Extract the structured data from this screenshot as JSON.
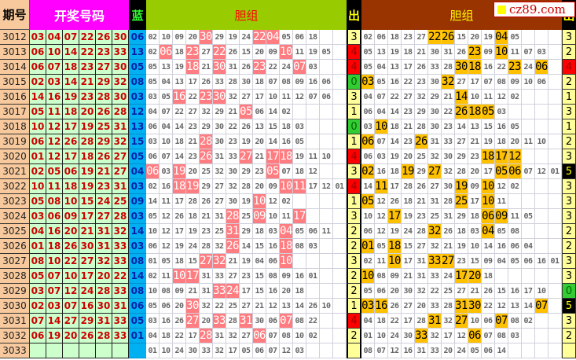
{
  "header": {
    "period": "期号",
    "draw": "开奖号码",
    "blue": "蓝",
    "dan_left": "胆组",
    "out_left": "出",
    "dan_right": "胆组",
    "out_right": "出"
  },
  "logo": "cz89.com",
  "colors": {
    "hit_left": "#ff7c80",
    "hit_right": "#ffc000",
    "out_4": "#ff0000",
    "out_0": "#33cc33",
    "out_5": "#000000",
    "draw_bg": "#ccffcc",
    "blue_bg": "#00b0f0"
  },
  "rows": [
    {
      "period": "3012",
      "draw": [
        "03",
        "04",
        "07",
        "22",
        "26",
        "30"
      ],
      "blue": "06",
      "left": [
        "02",
        "10",
        "09",
        "20",
        "30",
        "29",
        "19",
        "24",
        "22",
        "04",
        "05",
        "06",
        "18"
      ],
      "left_hits": [
        "30",
        "22",
        "04"
      ],
      "out_left": "3",
      "right": [
        "02",
        "06",
        "18",
        "23",
        "27",
        "22",
        "26",
        "15",
        "20",
        "19",
        "04",
        "05"
      ],
      "right_hits": [
        "22",
        "26",
        "04"
      ],
      "out_right": "3"
    },
    {
      "period": "3013",
      "draw": [
        "06",
        "10",
        "14",
        "22",
        "23",
        "33"
      ],
      "blue": "13",
      "left": [
        "02",
        "06",
        "18",
        "23",
        "27",
        "22",
        "26",
        "15",
        "20",
        "09",
        "10",
        "11",
        "19",
        "05"
      ],
      "left_hits": [
        "06",
        "23",
        "22",
        "10"
      ],
      "out_left": "4",
      "right": [
        "05",
        "13",
        "19",
        "18",
        "21",
        "30",
        "31",
        "26",
        "23",
        "09",
        "10",
        "11",
        "07",
        "03"
      ],
      "right_hits": [
        "23",
        "10"
      ],
      "out_right": "2"
    },
    {
      "period": "3014",
      "draw": [
        "06",
        "07",
        "18",
        "23",
        "27",
        "30"
      ],
      "blue": "05",
      "left": [
        "05",
        "13",
        "19",
        "18",
        "21",
        "30",
        "31",
        "26",
        "23",
        "22",
        "24",
        "07",
        "03"
      ],
      "left_hits": [
        "18",
        "30",
        "23",
        "07"
      ],
      "out_left": "4",
      "right": [
        "05",
        "04",
        "13",
        "17",
        "26",
        "33",
        "28",
        "30",
        "18",
        "16",
        "22",
        "23",
        "24",
        "06"
      ],
      "right_hits": [
        "30",
        "18",
        "23",
        "06"
      ],
      "out_right": "4"
    },
    {
      "period": "3015",
      "draw": [
        "02",
        "03",
        "14",
        "21",
        "29",
        "32"
      ],
      "blue": "08",
      "left": [
        "05",
        "04",
        "13",
        "17",
        "26",
        "33",
        "28",
        "30",
        "18",
        "07",
        "08",
        "09",
        "16",
        "06"
      ],
      "left_hits": [],
      "out_left": "0",
      "right": [
        "03",
        "05",
        "16",
        "22",
        "23",
        "30",
        "32",
        "27",
        "17",
        "07",
        "08",
        "09",
        "10",
        "06"
      ],
      "right_hits": [
        "03",
        "32"
      ],
      "out_right": "2"
    },
    {
      "period": "3016",
      "draw": [
        "14",
        "16",
        "19",
        "23",
        "28",
        "30"
      ],
      "blue": "03",
      "left": [
        "03",
        "05",
        "16",
        "22",
        "23",
        "30",
        "32",
        "27",
        "17",
        "10",
        "11",
        "12",
        "07",
        "06"
      ],
      "left_hits": [
        "16",
        "23",
        "30"
      ],
      "out_left": "3",
      "right": [
        "04",
        "07",
        "22",
        "27",
        "32",
        "29",
        "21",
        "14",
        "10",
        "11",
        "12",
        "02"
      ],
      "right_hits": [
        "14"
      ],
      "out_right": "1"
    },
    {
      "period": "3017",
      "draw": [
        "05",
        "11",
        "18",
        "20",
        "26",
        "28"
      ],
      "blue": "12",
      "left": [
        "04",
        "07",
        "22",
        "27",
        "32",
        "29",
        "21",
        "05",
        "06",
        "14",
        "02"
      ],
      "left_hits": [
        "05"
      ],
      "out_left": "1",
      "right": [
        "06",
        "04",
        "14",
        "23",
        "29",
        "30",
        "22",
        "26",
        "18",
        "05",
        "03"
      ],
      "right_hits": [
        "26",
        "18",
        "05"
      ],
      "out_right": "3"
    },
    {
      "period": "3018",
      "draw": [
        "10",
        "12",
        "17",
        "19",
        "25",
        "31"
      ],
      "blue": "13",
      "left": [
        "06",
        "04",
        "14",
        "23",
        "29",
        "30",
        "22",
        "26",
        "13",
        "15",
        "18",
        "03"
      ],
      "left_hits": [],
      "out_left": "0",
      "right": [
        "03",
        "10",
        "18",
        "21",
        "28",
        "30",
        "23",
        "14",
        "13",
        "15",
        "16",
        "05"
      ],
      "right_hits": [
        "10"
      ],
      "out_right": "1"
    },
    {
      "period": "3019",
      "draw": [
        "06",
        "12",
        "26",
        "28",
        "29",
        "32"
      ],
      "blue": "15",
      "left": [
        "03",
        "10",
        "18",
        "21",
        "28",
        "30",
        "23",
        "19",
        "20",
        "14",
        "16",
        "05"
      ],
      "left_hits": [
        "28"
      ],
      "out_left": "1",
      "right": [
        "06",
        "07",
        "14",
        "23",
        "26",
        "31",
        "33",
        "27",
        "21",
        "19",
        "18",
        "20",
        "11",
        "10"
      ],
      "right_hits": [
        "06",
        "26"
      ],
      "out_right": "2"
    },
    {
      "period": "3020",
      "draw": [
        "01",
        "12",
        "17",
        "18",
        "26",
        "27"
      ],
      "blue": "05",
      "left": [
        "06",
        "07",
        "14",
        "23",
        "26",
        "31",
        "33",
        "27",
        "21",
        "17",
        "18",
        "19",
        "11",
        "10"
      ],
      "left_hits": [
        "26",
        "27",
        "17",
        "18"
      ],
      "out_left": "4",
      "right": [
        "06",
        "03",
        "19",
        "20",
        "25",
        "32",
        "30",
        "29",
        "23",
        "18",
        "17",
        "12"
      ],
      "right_hits": [
        "18",
        "17",
        "12"
      ],
      "out_right": "3"
    },
    {
      "period": "3021",
      "draw": [
        "02",
        "05",
        "06",
        "19",
        "21",
        "27"
      ],
      "blue": "04",
      "left": [
        "06",
        "03",
        "19",
        "20",
        "25",
        "32",
        "30",
        "29",
        "23",
        "05",
        "07",
        "18",
        "12"
      ],
      "left_hits": [
        "06",
        "19",
        "05"
      ],
      "out_left": "3",
      "right": [
        "02",
        "16",
        "18",
        "19",
        "29",
        "27",
        "32",
        "28",
        "20",
        "17",
        "05",
        "06",
        "07",
        "12",
        "01"
      ],
      "right_hits": [
        "02",
        "19",
        "27",
        "05",
        "06"
      ],
      "out_right": "5"
    },
    {
      "period": "3022",
      "draw": [
        "10",
        "11",
        "18",
        "19",
        "23",
        "31"
      ],
      "blue": "03",
      "left": [
        "02",
        "16",
        "18",
        "19",
        "29",
        "27",
        "32",
        "28",
        "20",
        "09",
        "10",
        "11",
        "17",
        "12",
        "01"
      ],
      "left_hits": [
        "18",
        "19",
        "10",
        "11"
      ],
      "out_left": "4",
      "right": [
        "14",
        "11",
        "17",
        "28",
        "26",
        "27",
        "30",
        "19",
        "09",
        "10",
        "12",
        "02"
      ],
      "right_hits": [
        "11",
        "19",
        "10"
      ],
      "out_right": "3"
    },
    {
      "period": "3023",
      "draw": [
        "05",
        "08",
        "10",
        "15",
        "24",
        "25"
      ],
      "blue": "09",
      "left": [
        "14",
        "11",
        "17",
        "28",
        "26",
        "27",
        "30",
        "19",
        "10",
        "12",
        "02"
      ],
      "left_hits": [
        "10"
      ],
      "out_left": "1",
      "right": [
        "05",
        "12",
        "26",
        "18",
        "21",
        "31",
        "28",
        "25",
        "17",
        "10",
        "11"
      ],
      "right_hits": [
        "05",
        "25",
        "10"
      ],
      "out_right": "3"
    },
    {
      "period": "3024",
      "draw": [
        "03",
        "06",
        "09",
        "17",
        "27",
        "28"
      ],
      "blue": "03",
      "left": [
        "05",
        "12",
        "26",
        "18",
        "21",
        "31",
        "28",
        "25",
        "09",
        "10",
        "11",
        "17"
      ],
      "left_hits": [
        "28",
        "09",
        "17"
      ],
      "out_left": "3",
      "right": [
        "10",
        "12",
        "17",
        "19",
        "23",
        "25",
        "31",
        "29",
        "18",
        "06",
        "09",
        "11",
        "05"
      ],
      "right_hits": [
        "17",
        "06",
        "09"
      ],
      "out_right": "3"
    },
    {
      "period": "3025",
      "draw": [
        "04",
        "16",
        "20",
        "21",
        "31",
        "32"
      ],
      "blue": "14",
      "left": [
        "10",
        "12",
        "17",
        "19",
        "23",
        "25",
        "31",
        "29",
        "18",
        "03",
        "04",
        "05",
        "06",
        "11"
      ],
      "left_hits": [
        "31",
        "04"
      ],
      "out_left": "2",
      "right": [
        "06",
        "12",
        "19",
        "24",
        "28",
        "32",
        "26",
        "18",
        "03",
        "04",
        "05",
        "08"
      ],
      "right_hits": [
        "32",
        "04"
      ],
      "out_right": "2"
    },
    {
      "period": "3026",
      "draw": [
        "01",
        "18",
        "26",
        "30",
        "31",
        "33"
      ],
      "blue": "03",
      "left": [
        "06",
        "12",
        "19",
        "24",
        "28",
        "32",
        "26",
        "14",
        "15",
        "16",
        "18",
        "08",
        "03"
      ],
      "left_hits": [
        "26",
        "18"
      ],
      "out_left": "2",
      "right": [
        "01",
        "05",
        "18",
        "15",
        "27",
        "32",
        "21",
        "19",
        "10",
        "14",
        "16",
        "06",
        "04"
      ],
      "right_hits": [
        "01",
        "18"
      ],
      "out_right": "2"
    },
    {
      "period": "3027",
      "draw": [
        "08",
        "10",
        "22",
        "27",
        "32",
        "33"
      ],
      "blue": "08",
      "left": [
        "01",
        "05",
        "18",
        "15",
        "27",
        "32",
        "21",
        "19",
        "04",
        "06",
        "10"
      ],
      "left_hits": [
        "27",
        "32",
        "10"
      ],
      "out_left": "3",
      "right": [
        "02",
        "11",
        "10",
        "17",
        "31",
        "33",
        "27",
        "23",
        "15",
        "09",
        "04",
        "05",
        "06",
        "16",
        "01"
      ],
      "right_hits": [
        "10",
        "33",
        "27"
      ],
      "out_right": "3"
    },
    {
      "period": "3028",
      "draw": [
        "05",
        "07",
        "10",
        "17",
        "20",
        "22"
      ],
      "blue": "14",
      "left": [
        "02",
        "11",
        "10",
        "17",
        "31",
        "33",
        "27",
        "23",
        "15",
        "08",
        "09",
        "16",
        "01"
      ],
      "left_hits": [
        "10",
        "17"
      ],
      "out_left": "2",
      "right": [
        "10",
        "08",
        "09",
        "21",
        "31",
        "33",
        "24",
        "17",
        "20",
        "18"
      ],
      "right_hits": [
        "10",
        "17",
        "20"
      ],
      "out_right": "3"
    },
    {
      "period": "3029",
      "draw": [
        "03",
        "07",
        "12",
        "24",
        "28",
        "33"
      ],
      "blue": "08",
      "left": [
        "10",
        "08",
        "09",
        "21",
        "31",
        "33",
        "24",
        "17",
        "15",
        "16",
        "20",
        "18"
      ],
      "left_hits": [
        "33",
        "24"
      ],
      "out_left": "2",
      "right": [
        "05",
        "06",
        "20",
        "30",
        "32",
        "22",
        "25",
        "27",
        "21",
        "26",
        "15",
        "16",
        "17",
        "10"
      ],
      "right_hits": [],
      "out_right": "0"
    },
    {
      "period": "3030",
      "draw": [
        "02",
        "03",
        "07",
        "16",
        "30",
        "31"
      ],
      "blue": "06",
      "left": [
        "05",
        "06",
        "20",
        "30",
        "32",
        "22",
        "25",
        "27",
        "21",
        "12",
        "13",
        "14",
        "26",
        "10"
      ],
      "left_hits": [
        "30"
      ],
      "out_left": "1",
      "right": [
        "03",
        "16",
        "26",
        "27",
        "20",
        "33",
        "28",
        "31",
        "30",
        "22",
        "12",
        "13",
        "14",
        "07"
      ],
      "right_hits": [
        "03",
        "16",
        "31",
        "30",
        "07"
      ],
      "out_right": "5"
    },
    {
      "period": "3031",
      "draw": [
        "07",
        "14",
        "27",
        "29",
        "31",
        "33"
      ],
      "blue": "05",
      "left": [
        "03",
        "16",
        "26",
        "27",
        "20",
        "33",
        "28",
        "31",
        "30",
        "06",
        "07",
        "08",
        "22"
      ],
      "left_hits": [
        "27",
        "33",
        "31",
        "07"
      ],
      "out_left": "4",
      "right": [
        "04",
        "18",
        "22",
        "17",
        "28",
        "31",
        "32",
        "27",
        "10",
        "06",
        "07",
        "08",
        "02"
      ],
      "right_hits": [
        "31",
        "27",
        "07"
      ],
      "out_right": "3"
    },
    {
      "period": "3032",
      "draw": [
        "06",
        "19",
        "20",
        "26",
        "28",
        "33"
      ],
      "blue": "01",
      "left": [
        "04",
        "18",
        "22",
        "17",
        "28",
        "31",
        "32",
        "27",
        "06",
        "07",
        "08",
        "10",
        "02"
      ],
      "left_hits": [
        "28",
        "06"
      ],
      "out_left": "2",
      "right": [
        "01",
        "10",
        "24",
        "30",
        "33",
        "32",
        "17",
        "12",
        "06",
        "07",
        "08",
        "03"
      ],
      "right_hits": [
        "33",
        "06"
      ],
      "out_right": "2"
    },
    {
      "period": "3033",
      "draw": [
        "",
        "",
        "",
        "",
        "",
        ""
      ],
      "blue": "",
      "left": [
        "01",
        "10",
        "24",
        "30",
        "33",
        "32",
        "17",
        "05",
        "06",
        "07",
        "12",
        "03"
      ],
      "left_hits": [],
      "out_left": "",
      "right": [
        "08",
        "07",
        "12",
        "16",
        "31",
        "33",
        "20",
        "24",
        "05",
        "06",
        "14"
      ],
      "right_hits": [],
      "out_right": ""
    }
  ]
}
